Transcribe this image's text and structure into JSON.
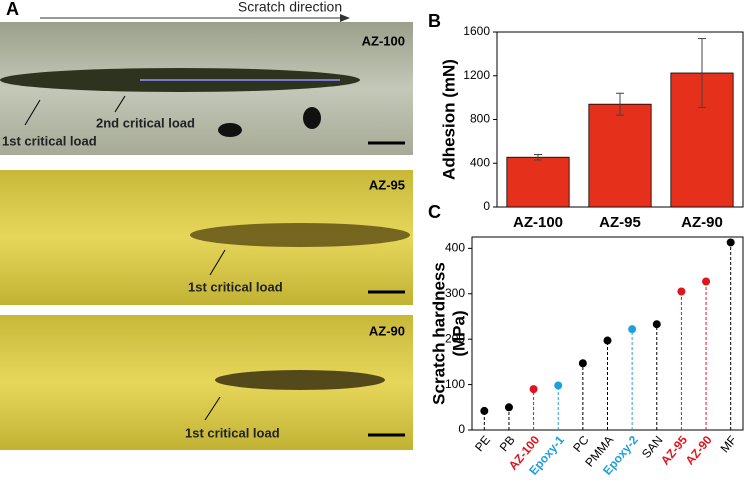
{
  "panel_a": {
    "letter": "A",
    "arrow_label": "Scratch direction",
    "images": [
      {
        "sample": "AZ-100",
        "labels": [
          "2nd critical load",
          "1st critical load"
        ]
      },
      {
        "sample": "AZ-95",
        "labels": [
          "1st critical load"
        ]
      },
      {
        "sample": "AZ-90",
        "labels": [
          "1st critical load"
        ]
      }
    ]
  },
  "chart_data": [
    {
      "type": "bar",
      "panel": "B",
      "ylabel": "Adhesion (mN)",
      "categories": [
        "AZ-100",
        "AZ-95",
        "AZ-90"
      ],
      "values": [
        455,
        940,
        1225
      ],
      "errors": [
        25,
        100,
        315
      ],
      "color": "#e5311b",
      "ylim": [
        0,
        1600
      ],
      "yticks": [
        0,
        400,
        800,
        1200,
        1600
      ]
    },
    {
      "type": "lollipop",
      "panel": "C",
      "ylabel": [
        "Scratch hardness",
        "(MPa)"
      ],
      "categories": [
        "PE",
        "PB",
        "AZ-100",
        "Epoxy-1",
        "PC",
        "PMMA",
        "Epoxy-2",
        "SAN",
        "AZ-95",
        "AZ-90",
        "MF"
      ],
      "values": [
        42,
        50,
        90,
        98,
        147,
        197,
        222,
        233,
        305,
        327,
        413
      ],
      "colors": [
        "#000000",
        "#000000",
        "#e0141e",
        "#1ea0dc",
        "#000000",
        "#000000",
        "#1ea0dc",
        "#000000",
        "#e0141e",
        "#e0141e",
        "#000000"
      ],
      "ylim": [
        0,
        425
      ],
      "yticks": [
        0,
        100,
        200,
        300,
        400
      ]
    }
  ]
}
